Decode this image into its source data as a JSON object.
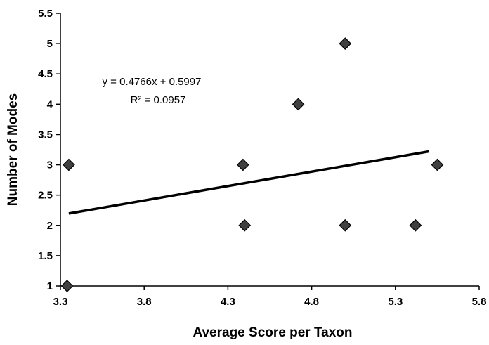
{
  "chart_data": {
    "type": "scatter",
    "title": "",
    "xlabel": "Average Score per Taxon",
    "ylabel": "Number of Modes",
    "xlim": [
      3.3,
      5.8
    ],
    "ylim": [
      1,
      5.5
    ],
    "x_ticks": [
      3.3,
      3.8,
      4.3,
      4.8,
      5.3,
      5.8
    ],
    "y_ticks": [
      1,
      1.5,
      2,
      2.5,
      3,
      3.5,
      4,
      4.5,
      5,
      5.5
    ],
    "x_tick_labels": [
      "3.3",
      "3.8",
      "4.3",
      "4.8",
      "5.3",
      "5.8"
    ],
    "y_tick_labels": [
      "1",
      "1.5",
      "2",
      "2.5",
      "3",
      "3.5",
      "4",
      "4.5",
      "5",
      "5.5"
    ],
    "grid": false,
    "legend": "none",
    "marker": "diamond",
    "marker_color": "#404040",
    "trendline_color": "#000000",
    "points": [
      {
        "x": 3.34,
        "y": 1
      },
      {
        "x": 3.35,
        "y": 3
      },
      {
        "x": 4.39,
        "y": 3
      },
      {
        "x": 4.4,
        "y": 2
      },
      {
        "x": 4.72,
        "y": 4
      },
      {
        "x": 5.0,
        "y": 5
      },
      {
        "x": 5.0,
        "y": 2
      },
      {
        "x": 5.42,
        "y": 2
      },
      {
        "x": 5.55,
        "y": 3
      }
    ],
    "trendline": {
      "slope": 0.4766,
      "intercept": 0.5997,
      "x_range": [
        3.35,
        5.5
      ],
      "equation": "y = 0.4766x + 0.5997",
      "r_squared": "R² = 0.0957"
    }
  }
}
